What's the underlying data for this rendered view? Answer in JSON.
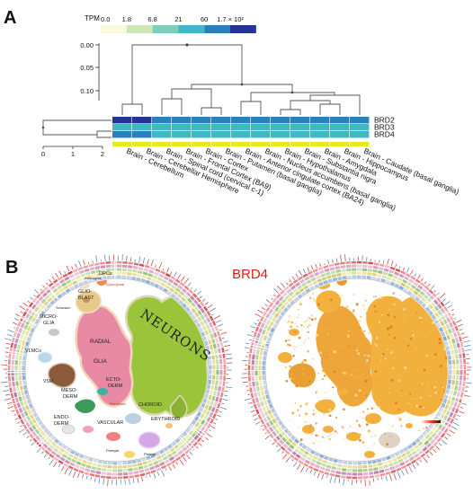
{
  "panel_a": {
    "letter": "A",
    "legend": {
      "title": "TPM",
      "breaks": [
        "0.0",
        "1.8",
        "6.8",
        "21",
        "60",
        "1.7 × 10²"
      ],
      "colors": [
        "#fbfbd9",
        "#cfe8b8",
        "#7fcdbb",
        "#41b6c4",
        "#2c7fb8",
        "#253494"
      ]
    },
    "col_dendro_ticks": [
      "0.00",
      "0.05",
      "0.10"
    ],
    "row_dendro_ticks": [
      "0",
      "1",
      "2"
    ],
    "genes": [
      "BRD2",
      "BRD3",
      "BRD4"
    ],
    "tissues": [
      "Brain - Cerebellum",
      "Brain - Cerebellar Hemisphere",
      "Brain - Spinal cord (cervical c-1)",
      "Brain - Frontal Cortex (BA9)",
      "Brain - Cortex",
      "Brain - Putamen (basal ganglia)",
      "Brain - Anterior cingulate cortex (BA24)",
      "Brain - Nucleus accumbens (basal ganglia)",
      "Brain - Hypothalamus",
      "Brain - Substantia nigra",
      "Brain - Amygdala",
      "Brain - Hippocampus",
      "Brain - Caudate (basal ganglia)"
    ],
    "heatmap_levels": [
      [
        5,
        5,
        4,
        4,
        4,
        4,
        4,
        4,
        4,
        4,
        4,
        4,
        4
      ],
      [
        3,
        3,
        3,
        3,
        3,
        3,
        3,
        3,
        3,
        3,
        3,
        3,
        3
      ],
      [
        4,
        4,
        3,
        3,
        3,
        3,
        3,
        3,
        3,
        3,
        3,
        3,
        3
      ]
    ],
    "tissue_bar_color": "#e8ea1a"
  },
  "panel_b": {
    "letter": "B",
    "gene_label": "BRD4",
    "cluster_labels": {
      "neurons": "NEURONS",
      "radial_glia": "RADIAL",
      "glia": "GLIA",
      "glioblast": "GLIO-",
      "glioblast2": "BLAST",
      "microglia": "MICRO-",
      "microglia2": "GLIA",
      "vlmcs": "VLMCs",
      "opcs": "OPCs",
      "mesoderm": "MESO-",
      "mesoderm2": "DERM",
      "ectoderm": "ECTO-",
      "ectoderm2": "DERM",
      "endoderm": "ENDO-",
      "endoderm2": "DERM",
      "vascular": "VASCULAR",
      "erythroid": "ERYTHROID",
      "choroid": "CHOROID",
      "vsm": "VSM",
      "astrocytes": "Astrocytes",
      "schwann": "Schwann",
      "ependymal": "Ependymal",
      "pericyte": "Pericyte",
      "fibroblast": "Fibroblast",
      "platelet": "Platelet"
    },
    "expression_colors": [
      "#f2b03c",
      "#e07b1b",
      "#f7dfa3"
    ]
  }
}
